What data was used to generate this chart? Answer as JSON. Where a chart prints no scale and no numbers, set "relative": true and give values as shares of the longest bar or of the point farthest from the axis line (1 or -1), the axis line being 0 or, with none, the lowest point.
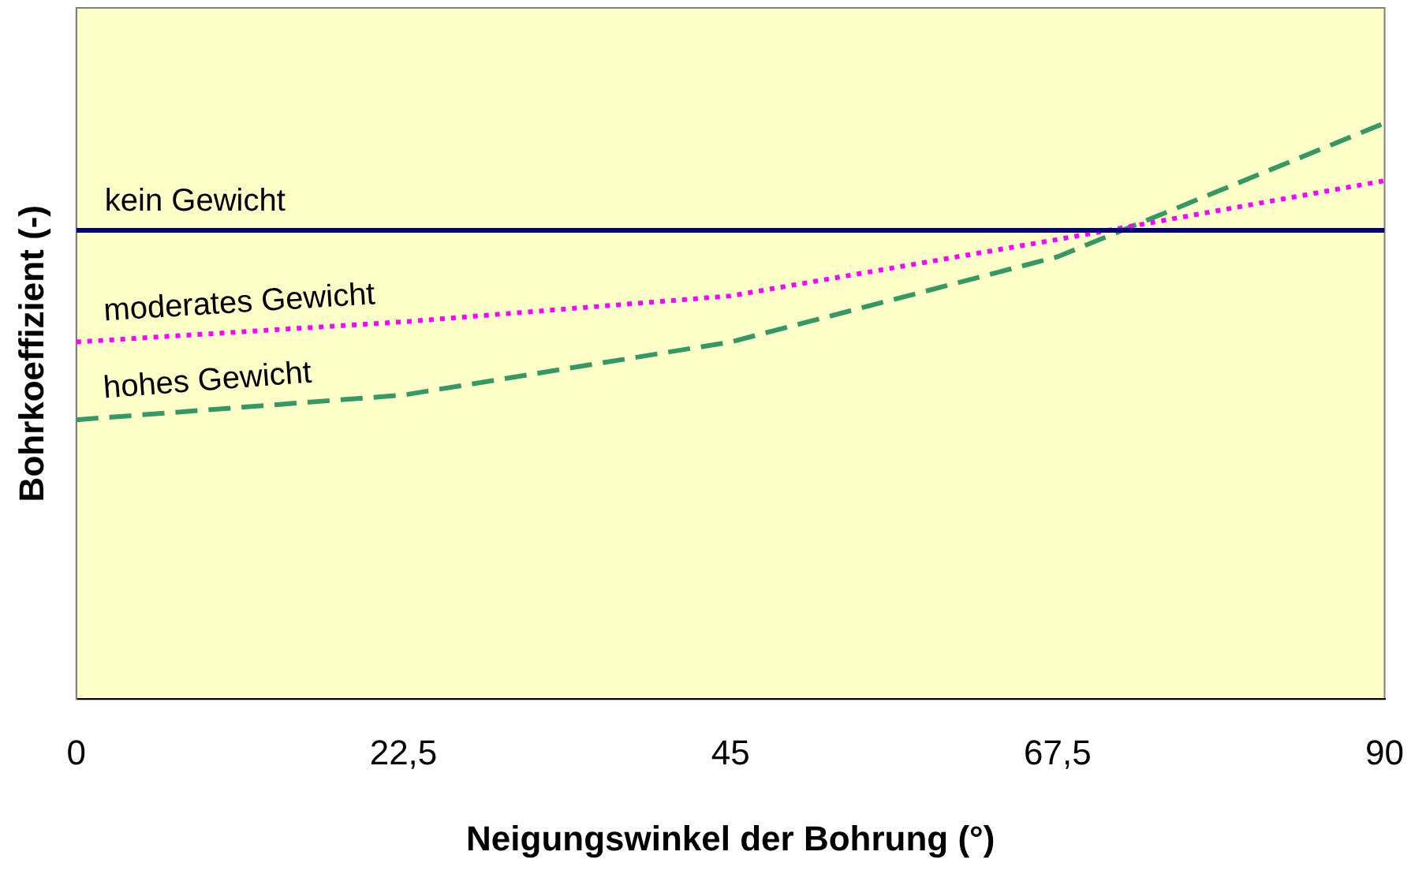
{
  "chart_data": {
    "type": "line",
    "relative": true,
    "xlabel": "Neigungswinkel der Bohrung (°)",
    "ylabel": "Bohrkoeffizient (-)",
    "x": [
      0,
      22.5,
      45,
      67.5,
      90
    ],
    "xlim": [
      0,
      90
    ],
    "xticks": [
      0,
      {
        "value": 22.5,
        "label": "22,5"
      },
      45,
      {
        "value": 67.5,
        "label": "67,5"
      },
      90
    ],
    "series": [
      {
        "name": "kein Gewicht",
        "color": "#000080",
        "line_style": "solid",
        "values": [
          0.814,
          0.814,
          0.814,
          0.814,
          0.814
        ]
      },
      {
        "name": "moderates Gewicht",
        "color": "#ff00ff",
        "line_style": "dotted",
        "values": [
          0.62,
          0.655,
          0.7,
          0.798,
          0.9
        ]
      },
      {
        "name": "hohes Gewicht",
        "color": "#339966",
        "line_style": "dashed",
        "values": [
          0.485,
          0.528,
          0.62,
          0.768,
          1
        ]
      }
    ],
    "grid": false,
    "legend": false,
    "marker": "none",
    "tick_labels": "x"
  }
}
